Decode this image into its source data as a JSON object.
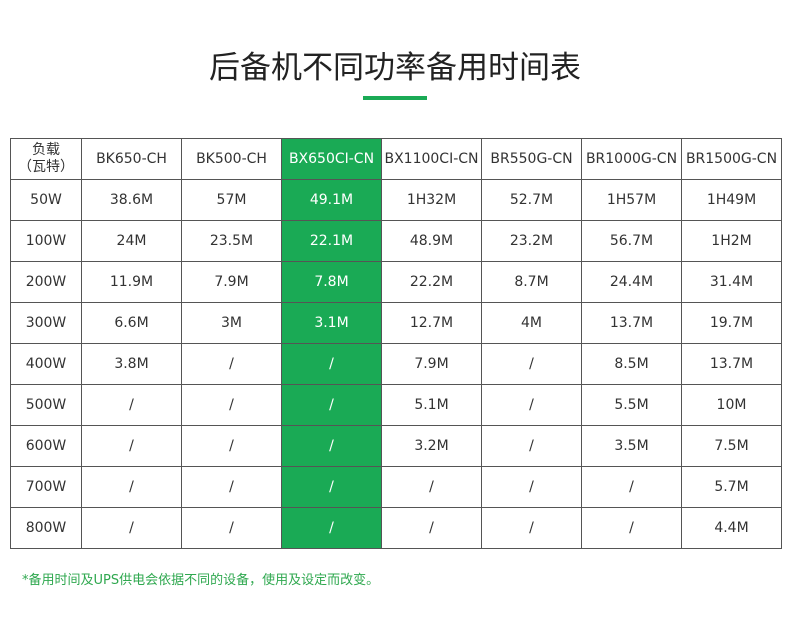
{
  "header": {
    "title": "后备机不同功率备用时间表"
  },
  "table": {
    "corner": [
      "负载",
      "（瓦特）"
    ],
    "columns": [
      "BK650-CH",
      "BK500-CH",
      "BX650CI-CN",
      "BX1100CI-CN",
      "BR550G-CN",
      "BR1000G-CN",
      "BR1500G-CN"
    ],
    "highlight_column": 2,
    "rows": [
      [
        "50W",
        "38.6M",
        "57M",
        "49.1M",
        "1H32M",
        "52.7M",
        "1H57M",
        "1H49M"
      ],
      [
        "100W",
        "24M",
        "23.5M",
        "22.1M",
        "48.9M",
        "23.2M",
        "56.7M",
        "1H2M"
      ],
      [
        "200W",
        "11.9M",
        "7.9M",
        "7.8M",
        "22.2M",
        "8.7M",
        "24.4M",
        "31.4M"
      ],
      [
        "300W",
        "6.6M",
        "3M",
        "3.1M",
        "12.7M",
        "4M",
        "13.7M",
        "19.7M"
      ],
      [
        "400W",
        "3.8M",
        "/",
        "/",
        "7.9M",
        "/",
        "8.5M",
        "13.7M"
      ],
      [
        "500W",
        "/",
        "/",
        "/",
        "5.1M",
        "/",
        "5.5M",
        "10M"
      ],
      [
        "600W",
        "/",
        "/",
        "/",
        "3.2M",
        "/",
        "3.5M",
        "7.5M"
      ],
      [
        "700W",
        "/",
        "/",
        "/",
        "/",
        "/",
        "/",
        "5.7M"
      ],
      [
        "800W",
        "/",
        "/",
        "/",
        "/",
        "/",
        "/",
        "4.4M"
      ]
    ]
  },
  "footnote": "*备用时间及UPS供电会依据不同的设备，使用及设定而改变。"
}
